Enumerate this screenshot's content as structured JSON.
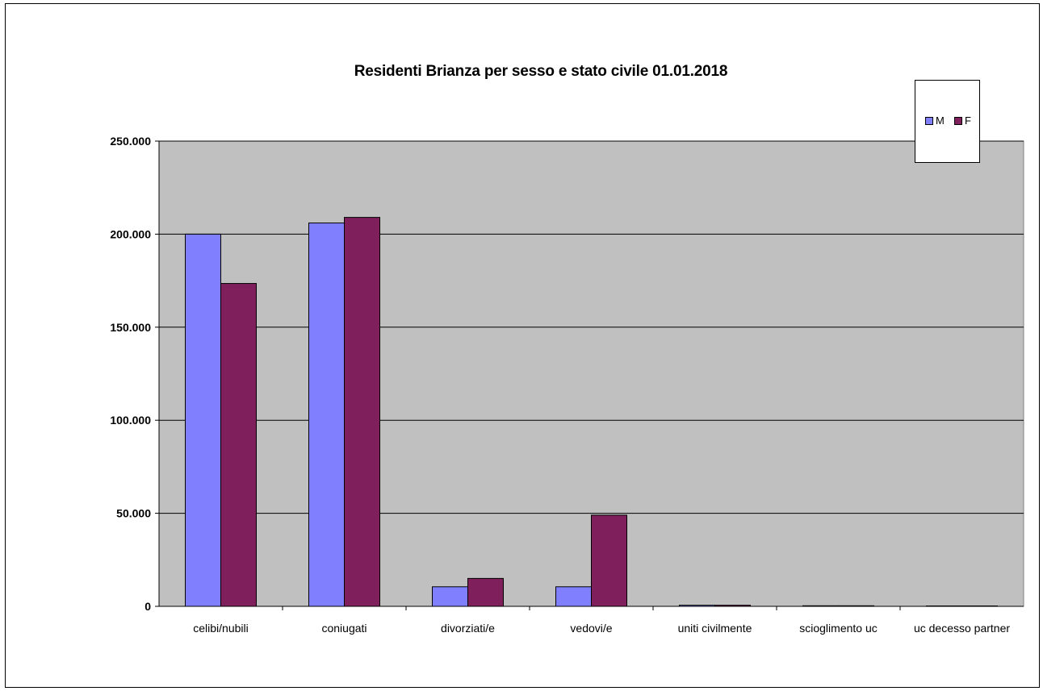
{
  "chart_data": {
    "type": "bar",
    "title": "Residenti Brianza per sesso e stato civile 01.01.2018",
    "xlabel": "",
    "ylabel": "",
    "ylim": [
      0,
      250000
    ],
    "yticks": [
      0,
      50000,
      100000,
      150000,
      200000,
      250000
    ],
    "ytick_labels": [
      "0",
      "50.000",
      "100.000",
      "150.000",
      "200.000",
      "250.000"
    ],
    "categories": [
      "celibi/nubili",
      "coniugati",
      "divorziati/e",
      "vedovi/e",
      "uniti civilmente",
      "scioglimento uc",
      "uc decesso partner"
    ],
    "series": [
      {
        "name": "M",
        "color": "#8080ff",
        "values": [
          200000,
          206000,
          10500,
          10500,
          600,
          300,
          50
        ]
      },
      {
        "name": "F",
        "color": "#7f1f5c",
        "values": [
          173500,
          209000,
          15000,
          49000,
          600,
          300,
          50
        ]
      }
    ],
    "grid": true,
    "plot_background": "#c0c0c0",
    "legend_position": "top-right"
  }
}
